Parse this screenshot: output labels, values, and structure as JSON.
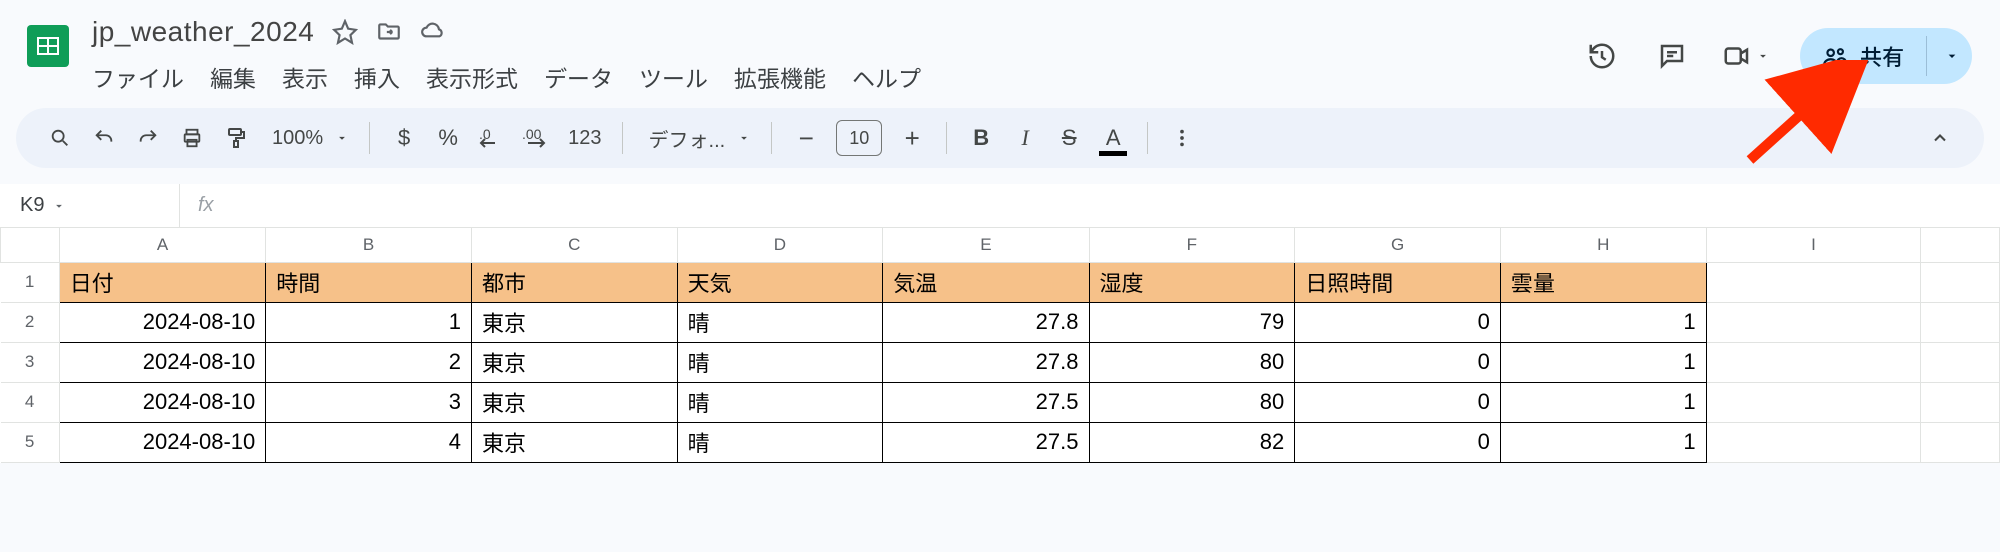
{
  "document": {
    "title": "jp_weather_2024",
    "namebox": "K9"
  },
  "menus": {
    "file": "ファイル",
    "edit": "編集",
    "view": "表示",
    "insert": "挿入",
    "format": "表示形式",
    "data": "データ",
    "tools": "ツール",
    "ext": "拡張機能",
    "help": "ヘルプ"
  },
  "share": {
    "label": "共有"
  },
  "toolbar": {
    "zoom": "100%",
    "currency": "$",
    "percent": "%",
    "dec_dec": ".0",
    "inc_dec": ".00",
    "numfmt": "123",
    "font": "デフォ...",
    "font_size": "10",
    "bold": "B",
    "italic": "I",
    "strike": "S",
    "color": "A"
  },
  "columns": [
    "A",
    "B",
    "C",
    "D",
    "E",
    "F",
    "G",
    "H",
    "I"
  ],
  "header_row": {
    "A": "日付",
    "B": "時間",
    "C": "都市",
    "D": "天気",
    "E": "気温",
    "F": "湿度",
    "G": "日照時間",
    "H": "雲量"
  },
  "header_color": "#f6c189",
  "cell_border_color": "#000000",
  "rows": [
    {
      "n": "1"
    },
    {
      "n": "2",
      "A": "2024-08-10",
      "B": "1",
      "C": "東京",
      "D": "晴",
      "E": "27.8",
      "F": "79",
      "G": "0",
      "H": "1"
    },
    {
      "n": "3",
      "A": "2024-08-10",
      "B": "2",
      "C": "東京",
      "D": "晴",
      "E": "27.8",
      "F": "80",
      "G": "0",
      "H": "1"
    },
    {
      "n": "4",
      "A": "2024-08-10",
      "B": "3",
      "C": "東京",
      "D": "晴",
      "E": "27.5",
      "F": "80",
      "G": "0",
      "H": "1"
    },
    {
      "n": "5",
      "A": "2024-08-10",
      "B": "4",
      "C": "東京",
      "D": "晴",
      "E": "27.5",
      "F": "82",
      "G": "0",
      "H": "1"
    }
  ],
  "col_align": {
    "A": "num",
    "B": "num",
    "C": "txt",
    "D": "txt",
    "E": "num",
    "F": "num",
    "G": "num",
    "H": "num"
  },
  "annotation": {
    "arrow_color": "#ff2a00"
  }
}
